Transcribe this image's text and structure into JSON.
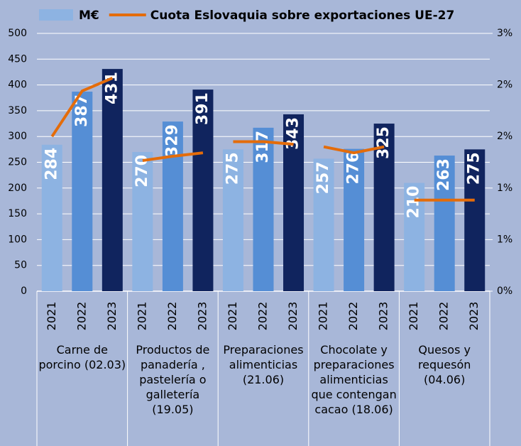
{
  "chart_data": {
    "type": "bar+line",
    "categories": [
      "2021",
      "2022",
      "2023",
      "2021",
      "2022",
      "2023",
      "2021",
      "2022",
      "2023",
      "2021",
      "2022",
      "2023",
      "2021",
      "2022",
      "2023"
    ],
    "groups": [
      "Carne de porcino (02.03)",
      "Productos de panadería , pastelería o galletería (19.05)",
      "Preparaciones alimenticias (21.06)",
      "Chocolate y preparaciones alimenticias que contengan cacao (18.06)",
      "Quesos y requesón (04.06)"
    ],
    "series": [
      {
        "name": "M€",
        "type": "bar",
        "color": "#8db3e2",
        "colors": [
          "#8db3e2",
          "#558ed5",
          "#10245e"
        ],
        "values": [
          284,
          387,
          431,
          270,
          329,
          391,
          275,
          317,
          343,
          257,
          276,
          325,
          210,
          263,
          275
        ]
      },
      {
        "name": "Cuota Eslovaquia sobre exportaciones UE-27",
        "type": "line",
        "color": "#e46c0a",
        "axis": "y2",
        "values": [
          1.8,
          2.33,
          2.48,
          1.52,
          1.57,
          1.61,
          1.74,
          1.74,
          1.71,
          1.68,
          1.61,
          1.68,
          1.06,
          1.06,
          1.06
        ]
      }
    ],
    "ylim": [
      0,
      500
    ],
    "yticks": [
      0,
      50,
      100,
      150,
      200,
      250,
      300,
      350,
      400,
      450,
      500
    ],
    "y2lim": [
      0,
      3
    ],
    "y2ticks": [
      {
        "value": 0,
        "label": "0%"
      },
      {
        "value": 0.6,
        "label": "1%"
      },
      {
        "value": 1.2,
        "label": "1%"
      },
      {
        "value": 1.8,
        "label": "2%"
      },
      {
        "value": 2.4,
        "label": "2%"
      },
      {
        "value": 3,
        "label": "3%"
      }
    ],
    "grid": true
  }
}
